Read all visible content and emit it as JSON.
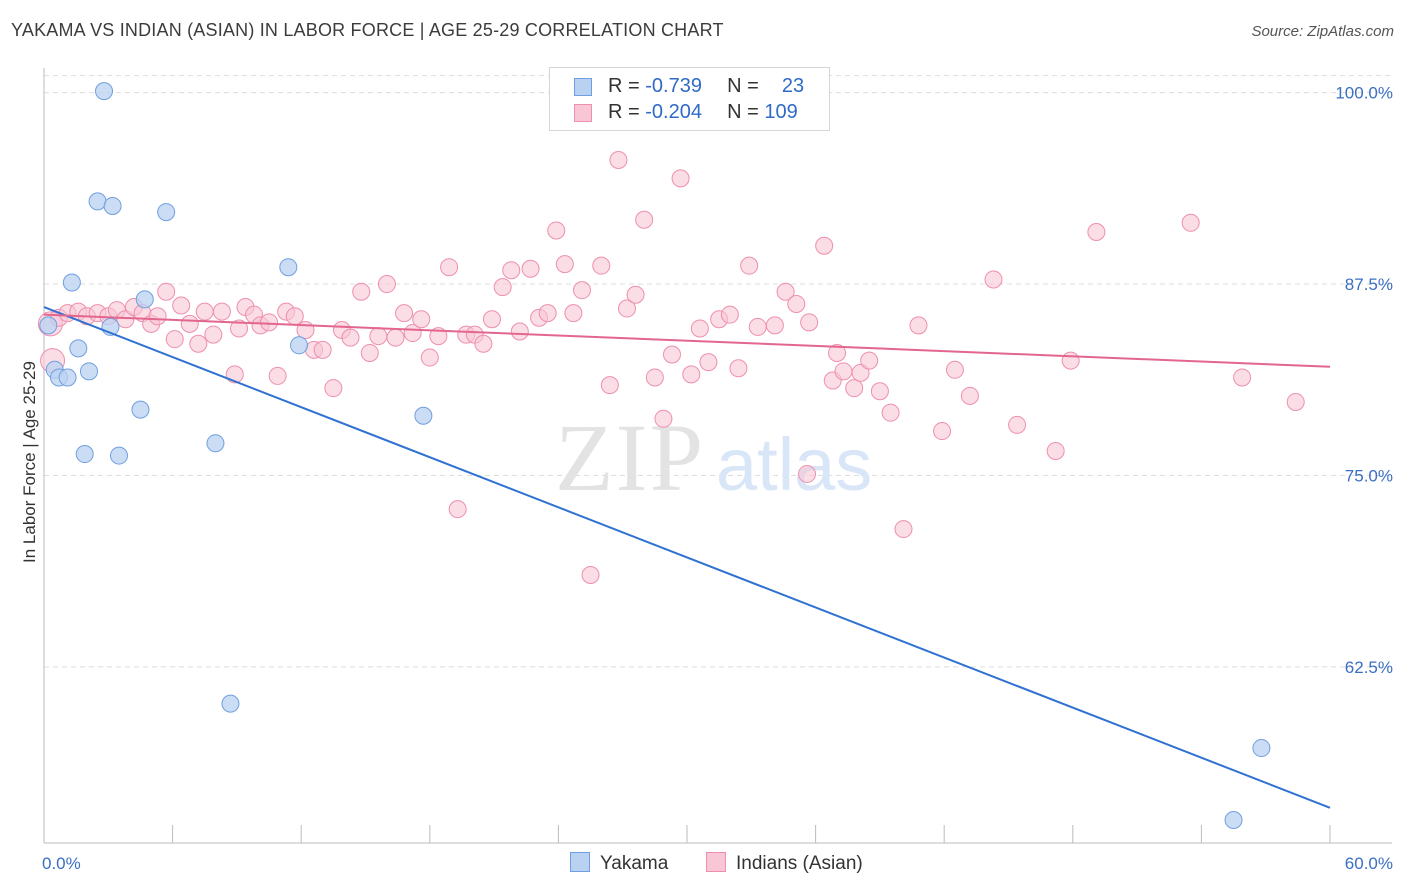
{
  "title": "YAKAMA VS INDIAN (ASIAN) IN LABOR FORCE | AGE 25-29 CORRELATION CHART",
  "source": "Source: ZipAtlas.com",
  "watermark": {
    "zip": "ZIP",
    "atlas": "atlas"
  },
  "legend": {
    "rows": [
      {
        "r_label": "R =",
        "r_value": "-0.739",
        "n_label": "N =",
        "n_value": "23"
      },
      {
        "r_label": "R =",
        "r_value": "-0.204",
        "n_label": "N =",
        "n_value": "109"
      }
    ]
  },
  "colors": {
    "yakama_fill": "#b9d2f2",
    "yakama_stroke": "#6f9fe0",
    "yakama_line": "#2f72d2",
    "indian_fill": "#f9c6d5",
    "indian_stroke": "#ee8fae",
    "indian_line": "#e2668e",
    "tick_text": "#3b6fc2",
    "grid": "#dddddd"
  },
  "chart_data": {
    "type": "scatter",
    "title": "YAKAMA VS INDIAN (ASIAN) IN LABOR FORCE | AGE 25-29 CORRELATION CHART",
    "xlabel": "",
    "ylabel": "In Labor Force | Age 25-29",
    "xlim": [
      0,
      60
    ],
    "ylim": [
      51,
      102
    ],
    "x_tick_labels": [
      "0.0%",
      "60.0%"
    ],
    "y_ticks": [
      {
        "value": 100,
        "label": "100.0%"
      },
      {
        "value": 87.5,
        "label": "87.5%"
      },
      {
        "value": 75,
        "label": "75.0%"
      },
      {
        "value": 62.5,
        "label": "62.5%"
      }
    ],
    "grid": true,
    "legend_position": "top-center",
    "series": [
      {
        "name": "Yakama",
        "trend": {
          "x": [
            0,
            60
          ],
          "y": [
            86.0,
            53.3
          ]
        },
        "points": [
          [
            2.8,
            100.1
          ],
          [
            2.5,
            92.9
          ],
          [
            3.2,
            92.6
          ],
          [
            5.7,
            92.2
          ],
          [
            1.3,
            87.6
          ],
          [
            11.4,
            88.6
          ],
          [
            4.7,
            86.5
          ],
          [
            0.2,
            84.8
          ],
          [
            3.1,
            84.7
          ],
          [
            1.6,
            83.3
          ],
          [
            11.9,
            83.5
          ],
          [
            0.5,
            81.9
          ],
          [
            0.7,
            81.4
          ],
          [
            1.1,
            81.4
          ],
          [
            2.1,
            81.8
          ],
          [
            4.5,
            79.3
          ],
          [
            17.7,
            78.9
          ],
          [
            8.0,
            77.1
          ],
          [
            1.9,
            76.4
          ],
          [
            3.5,
            76.3
          ],
          [
            8.7,
            60.1
          ],
          [
            56.8,
            57.2
          ],
          [
            55.5,
            52.5
          ]
        ]
      },
      {
        "name": "Indians (Asian)",
        "trend": {
          "x": [
            0,
            60
          ],
          "y": [
            85.5,
            82.1
          ]
        },
        "points": [
          [
            0.3,
            84.9
          ],
          [
            0.4,
            82.5
          ],
          [
            0.7,
            85.3
          ],
          [
            1.1,
            85.6
          ],
          [
            1.6,
            85.7
          ],
          [
            2.0,
            85.4
          ],
          [
            2.5,
            85.6
          ],
          [
            3.0,
            85.4
          ],
          [
            3.4,
            85.8
          ],
          [
            3.8,
            85.2
          ],
          [
            4.2,
            86.0
          ],
          [
            4.6,
            85.6
          ],
          [
            5.0,
            84.9
          ],
          [
            5.3,
            85.4
          ],
          [
            5.7,
            87.0
          ],
          [
            6.1,
            83.9
          ],
          [
            6.4,
            86.1
          ],
          [
            6.8,
            84.9
          ],
          [
            7.2,
            83.6
          ],
          [
            7.5,
            85.7
          ],
          [
            7.9,
            84.2
          ],
          [
            8.3,
            85.7
          ],
          [
            8.9,
            81.6
          ],
          [
            9.4,
            86.0
          ],
          [
            9.8,
            85.5
          ],
          [
            10.1,
            84.8
          ],
          [
            10.5,
            85.0
          ],
          [
            10.9,
            81.5
          ],
          [
            11.3,
            85.7
          ],
          [
            11.7,
            85.4
          ],
          [
            12.2,
            84.5
          ],
          [
            12.6,
            83.2
          ],
          [
            13.0,
            83.2
          ],
          [
            13.5,
            80.7
          ],
          [
            13.9,
            84.5
          ],
          [
            14.3,
            84.0
          ],
          [
            14.8,
            87.0
          ],
          [
            15.2,
            83.0
          ],
          [
            15.6,
            84.1
          ],
          [
            16.0,
            87.5
          ],
          [
            16.4,
            84.0
          ],
          [
            16.8,
            85.6
          ],
          [
            17.2,
            84.3
          ],
          [
            17.6,
            85.2
          ],
          [
            18.0,
            82.7
          ],
          [
            18.4,
            84.1
          ],
          [
            18.9,
            88.6
          ],
          [
            19.3,
            72.8
          ],
          [
            19.7,
            84.2
          ],
          [
            20.1,
            84.2
          ],
          [
            20.5,
            83.6
          ],
          [
            20.9,
            85.2
          ],
          [
            21.4,
            87.3
          ],
          [
            21.8,
            88.4
          ],
          [
            22.2,
            84.4
          ],
          [
            22.7,
            88.5
          ],
          [
            23.1,
            85.3
          ],
          [
            23.5,
            85.6
          ],
          [
            23.9,
            91.0
          ],
          [
            24.3,
            88.8
          ],
          [
            24.7,
            85.6
          ],
          [
            25.1,
            87.1
          ],
          [
            25.5,
            68.5
          ],
          [
            26.0,
            88.7
          ],
          [
            26.4,
            80.9
          ],
          [
            26.8,
            95.6
          ],
          [
            27.2,
            85.9
          ],
          [
            27.6,
            86.8
          ],
          [
            28.0,
            91.7
          ],
          [
            28.5,
            81.4
          ],
          [
            28.9,
            78.7
          ],
          [
            29.3,
            82.9
          ],
          [
            29.7,
            94.4
          ],
          [
            30.2,
            81.6
          ],
          [
            30.6,
            84.6
          ],
          [
            31.0,
            82.4
          ],
          [
            31.5,
            85.2
          ],
          [
            32.0,
            85.5
          ],
          [
            32.4,
            82.0
          ],
          [
            32.9,
            88.7
          ],
          [
            33.3,
            84.7
          ],
          [
            34.1,
            84.8
          ],
          [
            34.6,
            87.0
          ],
          [
            35.1,
            86.2
          ],
          [
            35.6,
            75.1
          ],
          [
            36.4,
            90.0
          ],
          [
            36.8,
            81.2
          ],
          [
            37.0,
            83.0
          ],
          [
            37.3,
            81.8
          ],
          [
            37.8,
            80.7
          ],
          [
            38.1,
            81.7
          ],
          [
            38.5,
            82.5
          ],
          [
            39.0,
            80.5
          ],
          [
            39.5,
            79.1
          ],
          [
            40.1,
            71.5
          ],
          [
            40.8,
            84.8
          ],
          [
            41.9,
            77.9
          ],
          [
            42.5,
            81.9
          ],
          [
            43.2,
            80.2
          ],
          [
            44.3,
            87.8
          ],
          [
            45.4,
            78.3
          ],
          [
            47.2,
            76.6
          ],
          [
            47.9,
            82.5
          ],
          [
            49.1,
            90.9
          ],
          [
            53.5,
            91.5
          ],
          [
            55.9,
            81.4
          ],
          [
            58.4,
            79.8
          ],
          [
            35.7,
            85.0
          ],
          [
            9.1,
            84.6
          ]
        ]
      }
    ]
  }
}
